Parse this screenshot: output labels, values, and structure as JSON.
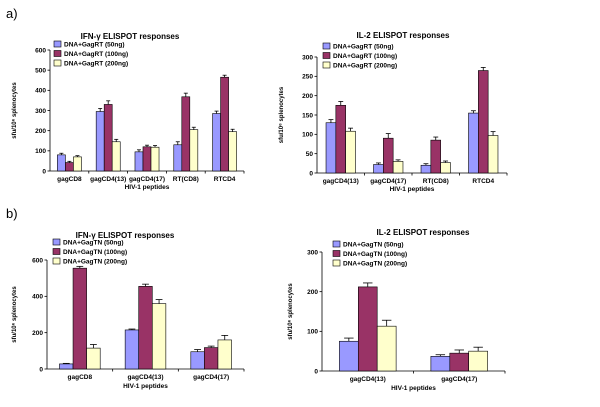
{
  "panel_labels": {
    "a": "a)",
    "b": "b)"
  },
  "colors": {
    "s1": "#9999ff",
    "s2": "#993366",
    "s3": "#ffffcc",
    "axis": "#000000",
    "err": "#000000"
  },
  "chart_data": [
    {
      "type": "bar",
      "title": "IFN-γ ELISPOT responses",
      "ylabel": "sfu/10⁶ splenocytes",
      "xlabel": "HIV-1 peptides",
      "ylim": [
        0,
        600
      ],
      "yticks": [
        "0",
        "100",
        "200",
        "300",
        "400",
        "500",
        "600"
      ],
      "categories": [
        "gagCD8",
        "gagCD4(13)",
        "gagCD4(17)",
        "RT(CD8)",
        "RTCD4"
      ],
      "series": [
        {
          "name": "DNA+GagRT (50ng)",
          "values": [
            80,
            295,
            95,
            130,
            285
          ],
          "errors": [
            8,
            15,
            10,
            15,
            12
          ]
        },
        {
          "name": "DNA+GagRT (100ng)",
          "values": [
            42,
            330,
            120,
            368,
            465
          ],
          "errors": [
            6,
            18,
            8,
            18,
            10
          ]
        },
        {
          "name": "DNA+GagRT (200ng)",
          "values": [
            70,
            145,
            118,
            205,
            195
          ],
          "errors": [
            6,
            12,
            8,
            12,
            12
          ]
        }
      ]
    },
    {
      "type": "bar",
      "title": "IL-2 ELISPOT responses",
      "ylabel": "sfu/10⁶ splenocytes",
      "xlabel": "HIV-1 peptides",
      "ylim": [
        0,
        300
      ],
      "yticks": [
        "0",
        "50",
        "100",
        "150",
        "200",
        "250",
        "300"
      ],
      "categories": [
        "gagCD4(13)",
        "gagCD4(17)",
        "RT(CD8)",
        "RTCD4"
      ],
      "series": [
        {
          "name": "DNA+GagRT (50ng)",
          "values": [
            130,
            22,
            20,
            155
          ],
          "errors": [
            8,
            4,
            4,
            6
          ]
        },
        {
          "name": "DNA+GagRT (100ng)",
          "values": [
            175,
            90,
            85,
            265
          ],
          "errors": [
            10,
            12,
            8,
            8
          ]
        },
        {
          "name": "DNA+GagRT (200ng)",
          "values": [
            108,
            30,
            27,
            97
          ],
          "errors": [
            8,
            4,
            4,
            10
          ]
        }
      ]
    },
    {
      "type": "bar",
      "title": "IFN-γ ELISPOT responses",
      "ylabel": "sfu/10⁶ splenocytes",
      "xlabel": "HIV-1 peptides",
      "ylim": [
        0,
        600
      ],
      "yticks": [
        "0",
        "200",
        "400",
        "600"
      ],
      "categories": [
        "gagCD8",
        "gagCD4(13)",
        "gagCD4(17)"
      ],
      "series": [
        {
          "name": "DNA+GagTN (50ng)",
          "values": [
            28,
            215,
            95
          ],
          "errors": [
            3,
            5,
            12
          ]
        },
        {
          "name": "DNA+GagTN (100ng)",
          "values": [
            555,
            455,
            118
          ],
          "errors": [
            10,
            12,
            8
          ]
        },
        {
          "name": "DNA+GagTN (200ng)",
          "values": [
            115,
            360,
            160
          ],
          "errors": [
            20,
            22,
            25
          ]
        }
      ]
    },
    {
      "type": "bar",
      "title": "IL-2 ELISPOT responses",
      "ylabel": "sfu/10⁶ splenocytes",
      "xlabel": "HIV-1 peptides",
      "ylim": [
        0,
        300
      ],
      "yticks": [
        "0",
        "100",
        "200",
        "300"
      ],
      "categories": [
        "gagCD4(13)",
        "gagCD4(17)"
      ],
      "series": [
        {
          "name": "DNA+GagTN (50ng)",
          "values": [
            75,
            37
          ],
          "errors": [
            8,
            4
          ]
        },
        {
          "name": "DNA+GagTN (100ng)",
          "values": [
            212,
            45
          ],
          "errors": [
            10,
            8
          ]
        },
        {
          "name": "DNA+GagTN (200ng)",
          "values": [
            113,
            50
          ],
          "errors": [
            15,
            10
          ]
        }
      ]
    }
  ]
}
